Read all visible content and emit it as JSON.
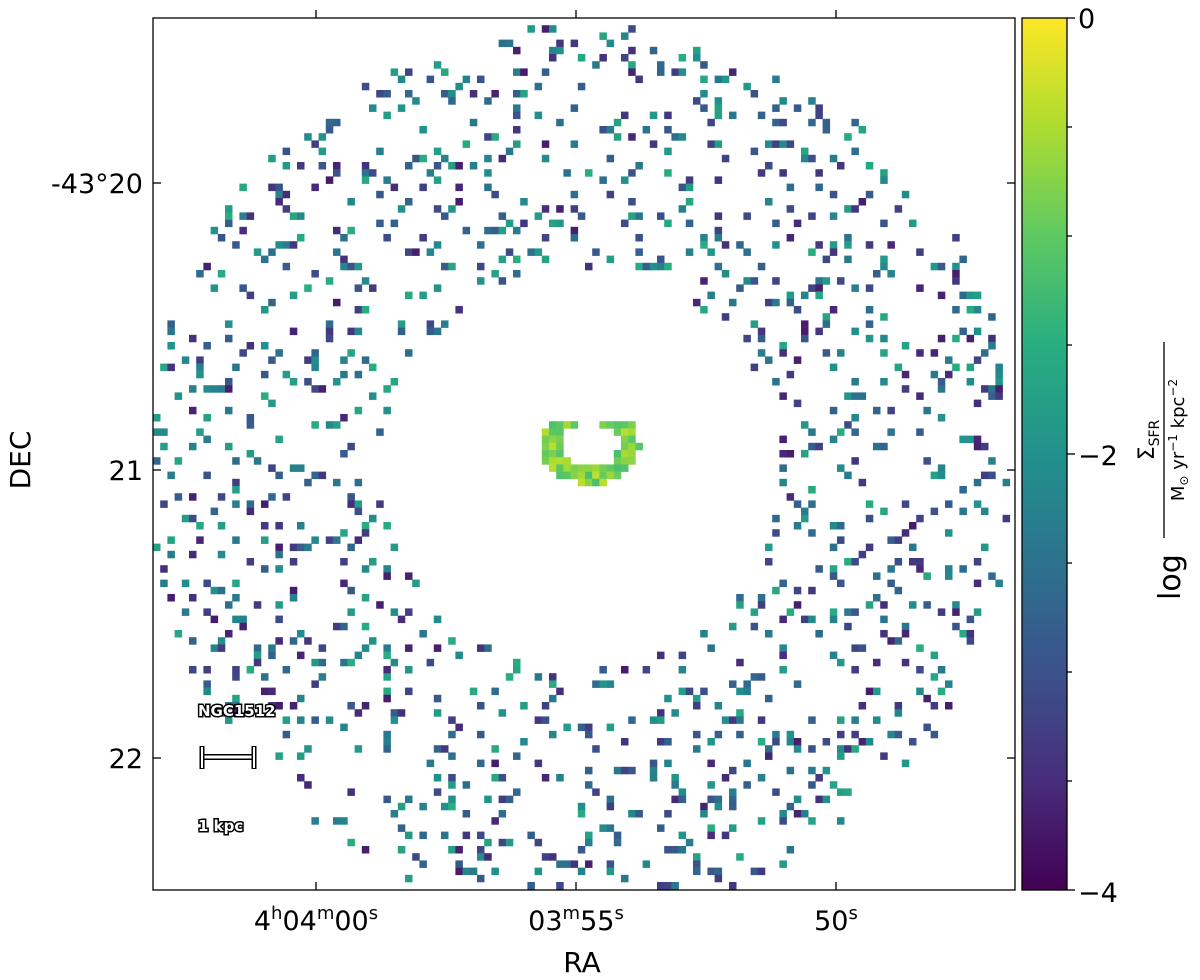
{
  "chart_data": {
    "type": "heatmap",
    "xlabel": "RA",
    "ylabel": "DEC",
    "x_tick_labels": [
      {
        "main": "4",
        "sup1": "h",
        "mid": "04",
        "sup2": "m",
        "tail": "00",
        "sup3": "s"
      },
      {
        "main": "",
        "sup1": "",
        "mid": "03",
        "sup2": "m",
        "tail": "55",
        "sup3": "s"
      },
      {
        "main": "",
        "sup1": "",
        "mid": "",
        "sup2": "",
        "tail": "50",
        "sup3": "s"
      }
    ],
    "y_tick_labels": [
      "-43°20",
      "21",
      "22"
    ],
    "object_label": "NGC1512",
    "scale_bar_label": "1 kpc",
    "colorbar": {
      "colormap": "viridis",
      "range": [
        -4,
        0
      ],
      "tick_labels": [
        "0",
        "−2",
        "−4"
      ],
      "label_prefix": "log",
      "label_numerator": "Σ",
      "label_numerator_sub": "SFR",
      "label_denominator": "M",
      "label_denominator_sub": "⊙",
      "label_denominator_rest1": " yr",
      "label_denominator_sup1": "−1",
      "label_denominator_rest2": " kpc",
      "label_denominator_sup2": "−2"
    },
    "features": [
      {
        "name": "star-forming ring",
        "shape": "ring",
        "ring_radius_fraction": [
          0.28,
          0.5
        ],
        "typical_log_value": -2.6
      },
      {
        "name": "nuclear ring",
        "shape": "arc",
        "typical_log_value": -0.8
      }
    ]
  }
}
